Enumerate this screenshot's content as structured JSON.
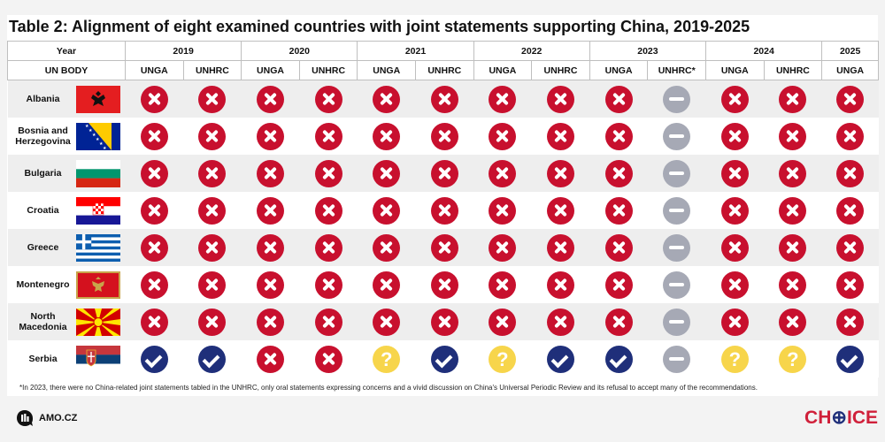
{
  "title": "Table 2: Alignment of eight examined countries with joint statements supporting China, 2019-2025",
  "header": {
    "year_label": "Year",
    "body_label": "UN BODY",
    "years": [
      {
        "label": "2019",
        "span": 2
      },
      {
        "label": "2020",
        "span": 2
      },
      {
        "label": "2021",
        "span": 2
      },
      {
        "label": "2022",
        "span": 2
      },
      {
        "label": "2023",
        "span": 2
      },
      {
        "label": "2024",
        "span": 2
      },
      {
        "label": "2025",
        "span": 1
      }
    ],
    "bodies": [
      "UNGA",
      "UNHRC",
      "UNGA",
      "UNHRC",
      "UNGA",
      "UNHRC",
      "UNGA",
      "UNHRC",
      "UNGA",
      "UNHRC*",
      "UNGA",
      "UNHRC",
      "UNGA"
    ]
  },
  "rows": [
    {
      "country": "Albania",
      "flag": "albania-flag",
      "values": [
        "no",
        "no",
        "no",
        "no",
        "no",
        "no",
        "no",
        "no",
        "no",
        "na",
        "no",
        "no",
        "no"
      ]
    },
    {
      "country": "Bosnia and Herzegovina",
      "flag": "bosnia-flag",
      "values": [
        "no",
        "no",
        "no",
        "no",
        "no",
        "no",
        "no",
        "no",
        "no",
        "na",
        "no",
        "no",
        "no"
      ]
    },
    {
      "country": "Bulgaria",
      "flag": "bulgaria-flag",
      "values": [
        "no",
        "no",
        "no",
        "no",
        "no",
        "no",
        "no",
        "no",
        "no",
        "na",
        "no",
        "no",
        "no"
      ]
    },
    {
      "country": "Croatia",
      "flag": "croatia-flag",
      "values": [
        "no",
        "no",
        "no",
        "no",
        "no",
        "no",
        "no",
        "no",
        "no",
        "na",
        "no",
        "no",
        "no"
      ]
    },
    {
      "country": "Greece",
      "flag": "greece-flag",
      "values": [
        "no",
        "no",
        "no",
        "no",
        "no",
        "no",
        "no",
        "no",
        "no",
        "na",
        "no",
        "no",
        "no"
      ]
    },
    {
      "country": "Montenegro",
      "flag": "montenegro-flag",
      "values": [
        "no",
        "no",
        "no",
        "no",
        "no",
        "no",
        "no",
        "no",
        "no",
        "na",
        "no",
        "no",
        "no"
      ]
    },
    {
      "country": "North Macedonia",
      "flag": "north-macedonia-flag",
      "values": [
        "no",
        "no",
        "no",
        "no",
        "no",
        "no",
        "no",
        "no",
        "no",
        "na",
        "no",
        "no",
        "no"
      ]
    },
    {
      "country": "Serbia",
      "flag": "serbia-flag",
      "values": [
        "yes",
        "yes",
        "no",
        "no",
        "maybe",
        "yes",
        "maybe",
        "yes",
        "yes",
        "na",
        "maybe",
        "maybe",
        "yes"
      ]
    }
  ],
  "icon_names": {
    "no": "red-x-icon",
    "yes": "blue-check-icon",
    "maybe": "yellow-question-icon",
    "na": "grey-minus-icon"
  },
  "maybe_glyph": "?",
  "colors": {
    "no": "#c8102e",
    "yes": "#1f2f7a",
    "maybe": "#f7d54b",
    "na": "#a6a9b5"
  },
  "footnote": "*In 2023, there were no China-related joint statements tabled in the UNHRC, only oral statements expressing concerns and a vivid discussion on China's Universal Periodic Review and its refusal to accept many of the recommendations.",
  "footer": {
    "amo_label": "AMO.CZ",
    "choice_left": "CH",
    "choice_mid": "⊕",
    "choice_right": "ICE"
  }
}
